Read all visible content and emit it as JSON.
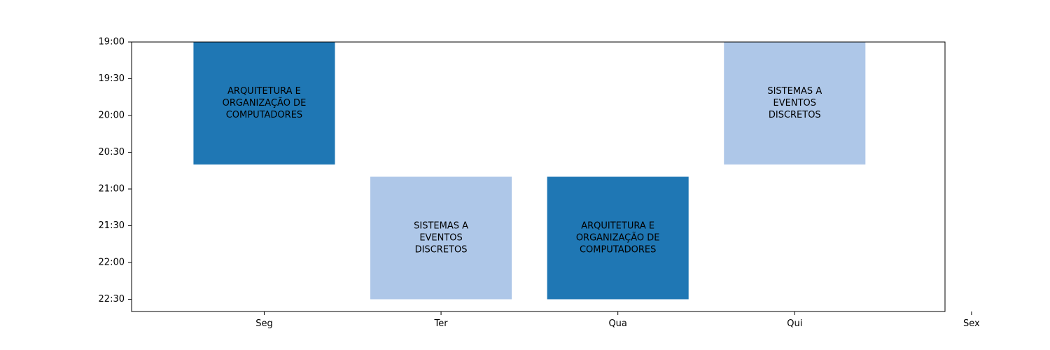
{
  "chart_data": {
    "type": "bar",
    "title": "",
    "xlabel": "",
    "ylabel": "",
    "categories": [
      "Seg",
      "Ter",
      "Qua",
      "Qui",
      "Sex"
    ],
    "y_ticks": [
      "19:00",
      "19:30",
      "20:00",
      "20:30",
      "21:00",
      "21:30",
      "22:00",
      "22:30"
    ],
    "ylim": [
      "19:00",
      "22:40"
    ],
    "grid": false,
    "events": [
      {
        "day": "Seg",
        "start": "19:00",
        "end": "20:40",
        "label_lines": [
          "ARQUITETURA E",
          "ORGANIZAÇÃO DE",
          "COMPUTADORES"
        ],
        "color": "#1f77b4"
      },
      {
        "day": "Ter",
        "start": "20:50",
        "end": "22:30",
        "label_lines": [
          "SISTEMAS A",
          "EVENTOS",
          "DISCRETOS"
        ],
        "color": "#aec7e8"
      },
      {
        "day": "Qua",
        "start": "20:50",
        "end": "22:30",
        "label_lines": [
          "ARQUITETURA E",
          "ORGANIZAÇÃO DE",
          "COMPUTADORES"
        ],
        "color": "#1f77b4"
      },
      {
        "day": "Qui",
        "start": "19:00",
        "end": "20:40",
        "label_lines": [
          "SISTEMAS A",
          "EVENTOS",
          "DISCRETOS"
        ],
        "color": "#aec7e8"
      }
    ]
  }
}
